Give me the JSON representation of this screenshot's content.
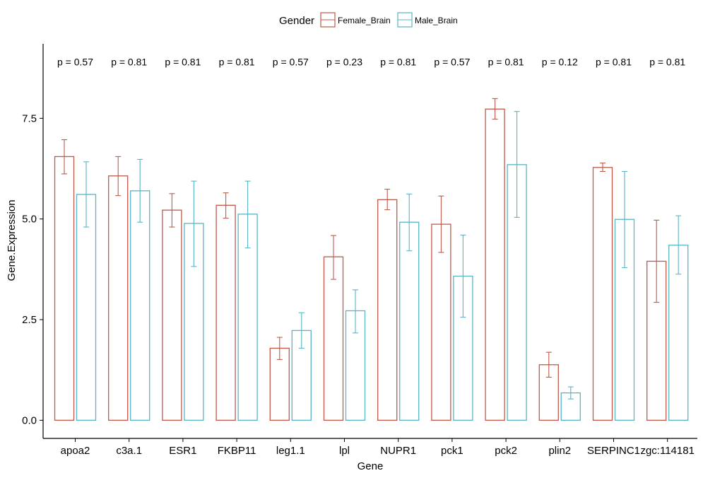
{
  "chart_data": {
    "type": "bar",
    "title": "",
    "xlabel": "Gene",
    "ylabel": "Gene.Expression",
    "ylim": [
      -0.45,
      9.35
    ],
    "yticks": [
      0.0,
      2.5,
      5.0,
      7.5
    ],
    "ytick_labels": [
      "0.0",
      "2.5",
      "5.0",
      "7.5"
    ],
    "categories": [
      "apoa2",
      "c3a.1",
      "ESR1",
      "FKBP11",
      "leg1.1",
      "lpl",
      "NUPR1",
      "pck1",
      "pck2",
      "plin2",
      "SERPINC1",
      "zgc:114181"
    ],
    "legend": {
      "title": "Gender",
      "position": "top"
    },
    "series": [
      {
        "name": "Female_Brain",
        "color": "#c0594a",
        "values": [
          6.55,
          6.07,
          5.22,
          5.34,
          1.79,
          4.06,
          5.48,
          4.87,
          7.73,
          1.38,
          6.28,
          3.95
        ],
        "err_low": [
          6.12,
          5.58,
          4.8,
          5.02,
          1.51,
          3.5,
          5.23,
          4.17,
          7.48,
          1.07,
          6.18,
          2.93
        ],
        "err_high": [
          6.97,
          6.55,
          5.63,
          5.65,
          2.06,
          4.59,
          5.74,
          5.57,
          7.99,
          1.69,
          6.39,
          4.97
        ]
      },
      {
        "name": "Male_Brain",
        "color": "#5ab4c4",
        "values": [
          5.61,
          5.7,
          4.89,
          5.12,
          2.23,
          2.72,
          4.92,
          3.58,
          6.35,
          0.68,
          4.99,
          4.35
        ],
        "err_low": [
          4.8,
          4.92,
          3.82,
          4.28,
          1.79,
          2.17,
          4.21,
          2.56,
          5.04,
          0.53,
          3.79,
          3.63
        ],
        "err_high": [
          6.42,
          6.48,
          5.94,
          5.94,
          2.67,
          3.24,
          5.62,
          4.6,
          7.67,
          0.83,
          6.18,
          5.08
        ]
      }
    ],
    "annotations": {
      "y": 8.9,
      "labels": [
        "p = 0.57",
        "p = 0.81",
        "p = 0.81",
        "p = 0.81",
        "p = 0.57",
        "p = 0.23",
        "p = 0.81",
        "p = 0.57",
        "p = 0.81",
        "p = 0.12",
        "p = 0.81",
        "p = 0.81"
      ]
    },
    "grid": false,
    "axis_color": "#000000",
    "text_color": "#000000"
  }
}
